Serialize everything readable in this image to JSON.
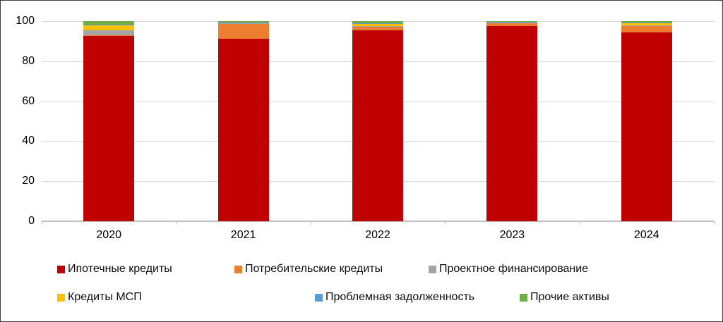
{
  "figure": {
    "background": "#ffffff",
    "border_color": "#3f3f3f"
  },
  "chart_data": {
    "type": "bar",
    "stacked": true,
    "title": "",
    "xlabel": "",
    "ylabel": "",
    "categories": [
      "2020",
      "2021",
      "2022",
      "2023",
      "2024"
    ],
    "series": [
      {
        "name": "Ипотечные кредиты",
        "color": "#C00000",
        "values": [
          92.6,
          91.2,
          95.5,
          97.4,
          94.4
        ]
      },
      {
        "name": "Потребительские кредиты",
        "color": "#ED7D31",
        "values": [
          0.3,
          7.6,
          1.8,
          1.6,
          3.4
        ]
      },
      {
        "name": "Проектное финансирование",
        "color": "#A5A5A5",
        "values": [
          2.6,
          0.2,
          0.3,
          0.2,
          0.2
        ]
      },
      {
        "name": "Кредиты МСП",
        "color": "#FFC000",
        "values": [
          2.3,
          0.2,
          1.3,
          0.4,
          1.0
        ]
      },
      {
        "name": "Проблемная задолженность",
        "color": "#5B9BD5",
        "values": [
          0.4,
          0.2,
          0.2,
          0.2,
          0.2
        ]
      },
      {
        "name": "Прочие активы",
        "color": "#70AD47",
        "values": [
          1.8,
          0.6,
          0.9,
          0.2,
          0.8
        ]
      }
    ],
    "ylim": [
      0,
      100
    ],
    "yticks": [
      0,
      20,
      40,
      60,
      80,
      100
    ],
    "grid": "horizontal",
    "gridline_color": "#d9d9d9",
    "axis_color": "#bfbfbf",
    "legend_position": "bottom"
  }
}
